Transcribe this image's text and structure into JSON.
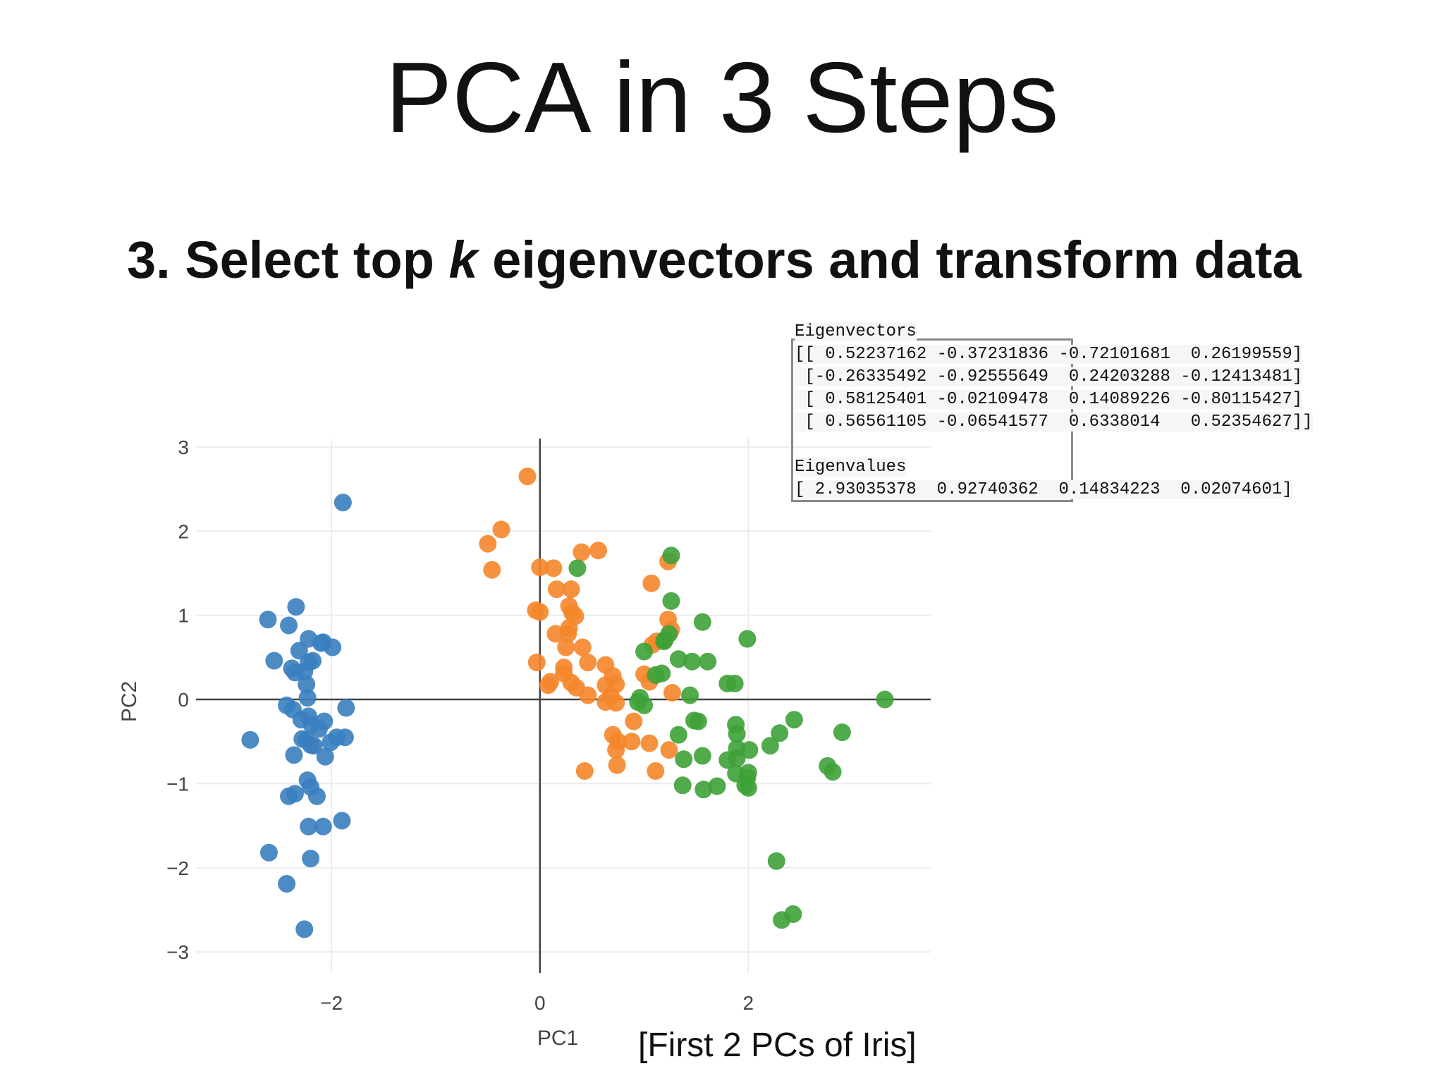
{
  "slide": {
    "title": "PCA in 3 Steps",
    "subtitle_pre": "3. Select top ",
    "subtitle_k": "k",
    "subtitle_post": " eigenvectors and transform data",
    "caption": "[First 2 PCs of Iris]"
  },
  "code": {
    "eigenvectors_label": "Eigenvectors",
    "eigenvector_rows": [
      "[[ 0.52237162 -0.37231836 -0.72101681  0.26199559]",
      " [-0.26335492 -0.92555649  0.24203288 -0.12413481]",
      " [ 0.58125401 -0.02109478  0.14089226 -0.80115427]",
      " [ 0.56561105 -0.06541577  0.6338014   0.52354627]]"
    ],
    "eigenvalues_label": "Eigenvalues",
    "eigenvalues_row": "[ 2.93035378  0.92740362  0.14834223  0.02074601]"
  },
  "chart_data": {
    "type": "scatter",
    "xlabel": "PC1",
    "ylabel": "PC2",
    "xlim": [
      -3.3,
      3.75
    ],
    "ylim": [
      -3.25,
      3.1
    ],
    "x_ticks": [
      -2,
      0,
      2
    ],
    "y_ticks": [
      3,
      2,
      1,
      0,
      -1,
      -2,
      -3
    ],
    "x_tick_labels": [
      "−2",
      "0",
      "2"
    ],
    "y_tick_labels": [
      "3",
      "2",
      "1",
      "0",
      "−1",
      "−2",
      "−3"
    ],
    "grid": true,
    "zero_lines": true,
    "series": [
      {
        "color": "#3a7ebf",
        "points": [
          [
            -1.89,
            2.34
          ],
          [
            -2.34,
            1.1
          ],
          [
            -2.61,
            0.95
          ],
          [
            -2.41,
            0.88
          ],
          [
            -2.22,
            0.72
          ],
          [
            -2.08,
            0.68
          ],
          [
            -2.1,
            0.67
          ],
          [
            -1.99,
            0.62
          ],
          [
            -2.31,
            0.58
          ],
          [
            -2.55,
            0.46
          ],
          [
            -2.18,
            0.46
          ],
          [
            -2.22,
            0.44
          ],
          [
            -2.38,
            0.37
          ],
          [
            -2.35,
            0.32
          ],
          [
            -2.26,
            0.33
          ],
          [
            -2.24,
            0.18
          ],
          [
            -2.23,
            0.02
          ],
          [
            -2.43,
            -0.07
          ],
          [
            -2.37,
            -0.12
          ],
          [
            -1.86,
            -0.1
          ],
          [
            -2.22,
            -0.2
          ],
          [
            -2.29,
            -0.24
          ],
          [
            -2.07,
            -0.26
          ],
          [
            -2.19,
            -0.3
          ],
          [
            -2.12,
            -0.35
          ],
          [
            -2.78,
            -0.48
          ],
          [
            -1.95,
            -0.45
          ],
          [
            -1.87,
            -0.45
          ],
          [
            -2.28,
            -0.47
          ],
          [
            -2.24,
            -0.48
          ],
          [
            -2.01,
            -0.51
          ],
          [
            -2.2,
            -0.54
          ],
          [
            -2.17,
            -0.55
          ],
          [
            -2.36,
            -0.66
          ],
          [
            -2.06,
            -0.68
          ],
          [
            -2.23,
            -0.96
          ],
          [
            -2.2,
            -1.04
          ],
          [
            -2.35,
            -1.12
          ],
          [
            -2.41,
            -1.15
          ],
          [
            -2.14,
            -1.15
          ],
          [
            -2.22,
            -1.51
          ],
          [
            -2.08,
            -1.51
          ],
          [
            -1.9,
            -1.44
          ],
          [
            -2.6,
            -1.82
          ],
          [
            -2.2,
            -1.89
          ],
          [
            -2.43,
            -2.19
          ],
          [
            -2.26,
            -2.73
          ]
        ]
      },
      {
        "color": "#f5862a",
        "points": [
          [
            -0.12,
            2.65
          ],
          [
            -0.37,
            2.02
          ],
          [
            -0.5,
            1.85
          ],
          [
            -0.46,
            1.54
          ],
          [
            0.4,
            1.75
          ],
          [
            0.56,
            1.77
          ],
          [
            0.0,
            1.57
          ],
          [
            0.13,
            1.56
          ],
          [
            0.16,
            1.31
          ],
          [
            0.3,
            1.31
          ],
          [
            0.28,
            1.11
          ],
          [
            0.31,
            1.03
          ],
          [
            0.34,
            0.99
          ],
          [
            -0.04,
            1.06
          ],
          [
            0.0,
            1.04
          ],
          [
            0.15,
            0.78
          ],
          [
            0.27,
            0.78
          ],
          [
            0.28,
            0.85
          ],
          [
            0.25,
            0.62
          ],
          [
            0.41,
            0.62
          ],
          [
            0.46,
            0.44
          ],
          [
            0.63,
            0.41
          ],
          [
            -0.03,
            0.44
          ],
          [
            0.23,
            0.38
          ],
          [
            0.23,
            0.31
          ],
          [
            0.1,
            0.21
          ],
          [
            0.08,
            0.17
          ],
          [
            0.3,
            0.2
          ],
          [
            0.35,
            0.14
          ],
          [
            0.7,
            0.28
          ],
          [
            0.63,
            0.17
          ],
          [
            0.73,
            0.18
          ],
          [
            0.46,
            0.05
          ],
          [
            0.68,
            0.04
          ],
          [
            0.63,
            -0.03
          ],
          [
            0.73,
            -0.04
          ],
          [
            1.07,
            1.38
          ],
          [
            1.23,
            1.64
          ],
          [
            1.23,
            0.95
          ],
          [
            1.08,
            0.65
          ],
          [
            1.12,
            0.69
          ],
          [
            1.26,
            0.83
          ],
          [
            1.0,
            0.3
          ],
          [
            1.05,
            0.21
          ],
          [
            1.27,
            0.08
          ],
          [
            0.9,
            -0.26
          ],
          [
            0.7,
            -0.42
          ],
          [
            0.75,
            -0.5
          ],
          [
            0.88,
            -0.5
          ],
          [
            1.05,
            -0.52
          ],
          [
            0.73,
            -0.6
          ],
          [
            1.24,
            -0.6
          ],
          [
            0.74,
            -0.78
          ],
          [
            1.11,
            -0.85
          ],
          [
            0.43,
            -0.85
          ]
        ]
      },
      {
        "color": "#3ea137",
        "points": [
          [
            1.26,
            1.71
          ],
          [
            0.36,
            1.56
          ],
          [
            1.26,
            1.17
          ],
          [
            1.56,
            0.92
          ],
          [
            1.99,
            0.72
          ],
          [
            1.2,
            0.71
          ],
          [
            1.24,
            0.78
          ],
          [
            1.19,
            0.69
          ],
          [
            1.0,
            0.57
          ],
          [
            1.33,
            0.48
          ],
          [
            1.46,
            0.45
          ],
          [
            1.61,
            0.45
          ],
          [
            1.17,
            0.31
          ],
          [
            1.11,
            0.29
          ],
          [
            1.8,
            0.19
          ],
          [
            1.87,
            0.19
          ],
          [
            1.44,
            0.05
          ],
          [
            0.96,
            0.02
          ],
          [
            0.94,
            -0.03
          ],
          [
            1.0,
            -0.07
          ],
          [
            3.31,
            0.0
          ],
          [
            1.48,
            -0.25
          ],
          [
            1.52,
            -0.26
          ],
          [
            2.44,
            -0.24
          ],
          [
            1.88,
            -0.3
          ],
          [
            2.3,
            -0.4
          ],
          [
            1.89,
            -0.41
          ],
          [
            1.33,
            -0.42
          ],
          [
            2.9,
            -0.39
          ],
          [
            1.89,
            -0.58
          ],
          [
            2.01,
            -0.6
          ],
          [
            2.21,
            -0.55
          ],
          [
            1.56,
            -0.67
          ],
          [
            1.38,
            -0.71
          ],
          [
            1.89,
            -0.7
          ],
          [
            1.8,
            -0.72
          ],
          [
            2.76,
            -0.79
          ],
          [
            2.81,
            -0.86
          ],
          [
            2.0,
            -0.87
          ],
          [
            1.99,
            -0.93
          ],
          [
            1.88,
            -0.88
          ],
          [
            1.37,
            -1.02
          ],
          [
            1.57,
            -1.07
          ],
          [
            1.7,
            -1.03
          ],
          [
            1.97,
            -1.02
          ],
          [
            2.0,
            -1.05
          ],
          [
            2.27,
            -1.92
          ],
          [
            2.32,
            -2.62
          ],
          [
            2.43,
            -2.55
          ]
        ]
      }
    ]
  }
}
